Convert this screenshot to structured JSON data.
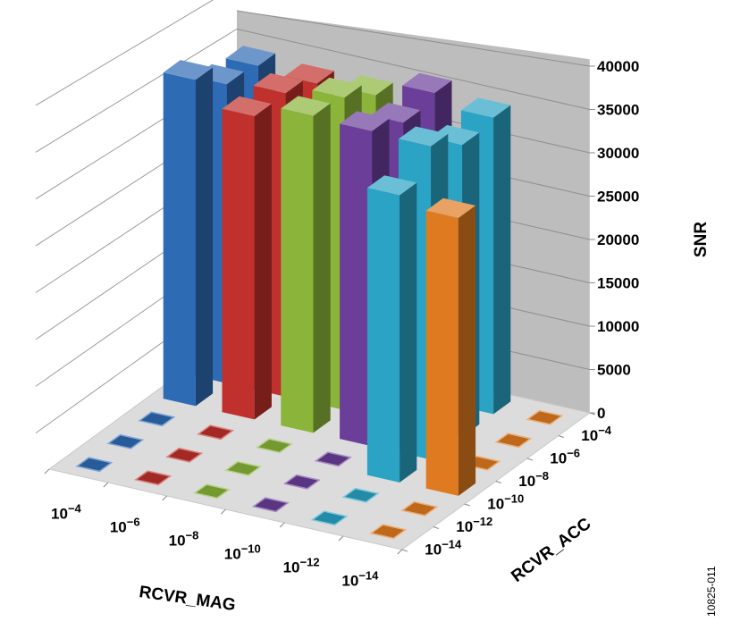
{
  "chart_data": {
    "type": "bar3d",
    "x_axis": {
      "label": "RCVR_MAG",
      "categories": [
        {
          "base": "10",
          "exp": "−4"
        },
        {
          "base": "10",
          "exp": "−6"
        },
        {
          "base": "10",
          "exp": "−8"
        },
        {
          "base": "10",
          "exp": "−10"
        },
        {
          "base": "10",
          "exp": "−12"
        },
        {
          "base": "10",
          "exp": "−14"
        }
      ]
    },
    "depth_axis": {
      "label": "RCVR_ACC",
      "categories": [
        {
          "base": "10",
          "exp": "−4"
        },
        {
          "base": "10",
          "exp": "−6"
        },
        {
          "base": "10",
          "exp": "−8"
        },
        {
          "base": "10",
          "exp": "−10"
        },
        {
          "base": "10",
          "exp": "−12"
        },
        {
          "base": "10",
          "exp": "−14"
        }
      ]
    },
    "z_axis": {
      "label": "SNR",
      "ylim": [
        0,
        40000
      ],
      "ticks": [
        "0",
        "5000",
        "10000",
        "15000",
        "20000",
        "25000",
        "30000",
        "35000",
        "40000"
      ]
    },
    "grid": true,
    "series": [
      {
        "color": "#2e6bb5",
        "values": [
          34000,
          33500,
          35500,
          0,
          0,
          0
        ]
      },
      {
        "color": "#c0302c",
        "values": [
          33500,
          34000,
          33000,
          0,
          0,
          0
        ]
      },
      {
        "color": "#8ab43a",
        "values": [
          33700,
          35000,
          34500,
          0,
          0,
          0
        ]
      },
      {
        "color": "#6a3e99",
        "values": [
          35500,
          33700,
          34300,
          0,
          0,
          0
        ]
      },
      {
        "color": "#2aa3c4",
        "values": [
          34200,
          32700,
          34100,
          30400,
          0,
          0
        ]
      },
      {
        "color": "#e07a20",
        "values": [
          0,
          0,
          0,
          29400,
          0,
          0
        ]
      }
    ]
  },
  "figure_id": "10825-011"
}
